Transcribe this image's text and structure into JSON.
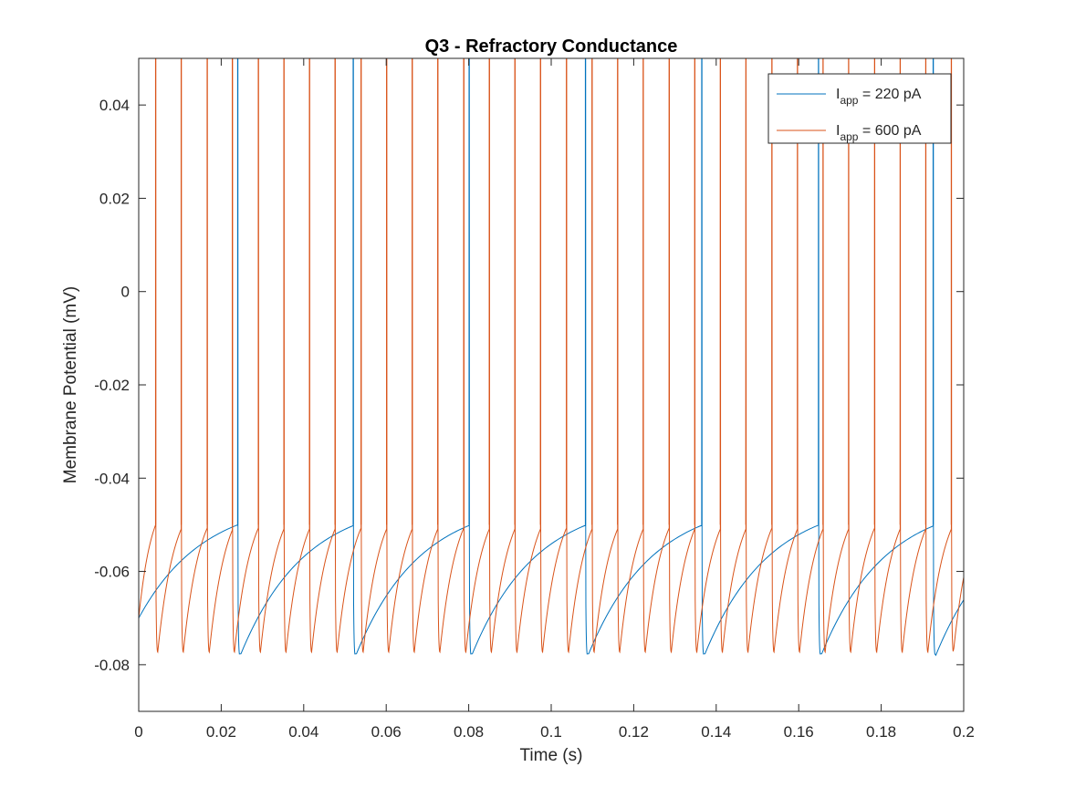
{
  "chart_data": {
    "type": "line",
    "title": "Q3 - Refractory Conductance",
    "xlabel": "Time (s)",
    "ylabel": "Membrane Potential (mV)",
    "xlim": [
      0,
      0.2
    ],
    "ylim": [
      -0.09,
      0.05
    ],
    "xticks": [
      0,
      0.02,
      0.04,
      0.06,
      0.08,
      0.1,
      0.12,
      0.14,
      0.16,
      0.18,
      0.2
    ],
    "xtick_labels": [
      "0",
      "0.02",
      "0.04",
      "0.06",
      "0.08",
      "0.1",
      "0.12",
      "0.14",
      "0.16",
      "0.18",
      "0.2"
    ],
    "yticks": [
      -0.08,
      -0.06,
      -0.04,
      -0.02,
      0,
      0.02,
      0.04
    ],
    "ytick_labels": [
      "-0.08",
      "-0.06",
      "-0.04",
      "-0.02",
      "0",
      "0.02",
      "0.04"
    ],
    "grid": false,
    "legend_position": "top-right",
    "series": [
      {
        "name": "I_app = 220 pA",
        "legend_main": "I",
        "legend_sub": "app",
        "legend_rest": " = 220 pA",
        "color": "#0072BD",
        "start_potential": -0.07,
        "threshold": -0.05,
        "peak": 0.05,
        "reset_min": -0.0785,
        "spike_times": [
          0.024,
          0.052,
          0.0801,
          0.1083,
          0.1365,
          0.1648,
          0.1926
        ]
      },
      {
        "name": "I_app = 600 pA",
        "legend_main": "I",
        "legend_sub": "app",
        "legend_rest": " = 600 pA",
        "color": "#D95319",
        "start_potential": -0.07,
        "threshold": -0.05,
        "peak": 0.05,
        "reset_min": -0.078,
        "spike_times": [
          0.0041,
          0.0103,
          0.0166,
          0.0227,
          0.029,
          0.0352,
          0.0414,
          0.0476,
          0.0539,
          0.0601,
          0.0663,
          0.0725,
          0.0788,
          0.085,
          0.0912,
          0.0974,
          0.1037,
          0.1099,
          0.1161,
          0.1223,
          0.1286,
          0.1348,
          0.141,
          0.1472,
          0.1535,
          0.1597,
          0.1659,
          0.1721,
          0.1784,
          0.1846,
          0.1908,
          0.197
        ]
      }
    ]
  }
}
